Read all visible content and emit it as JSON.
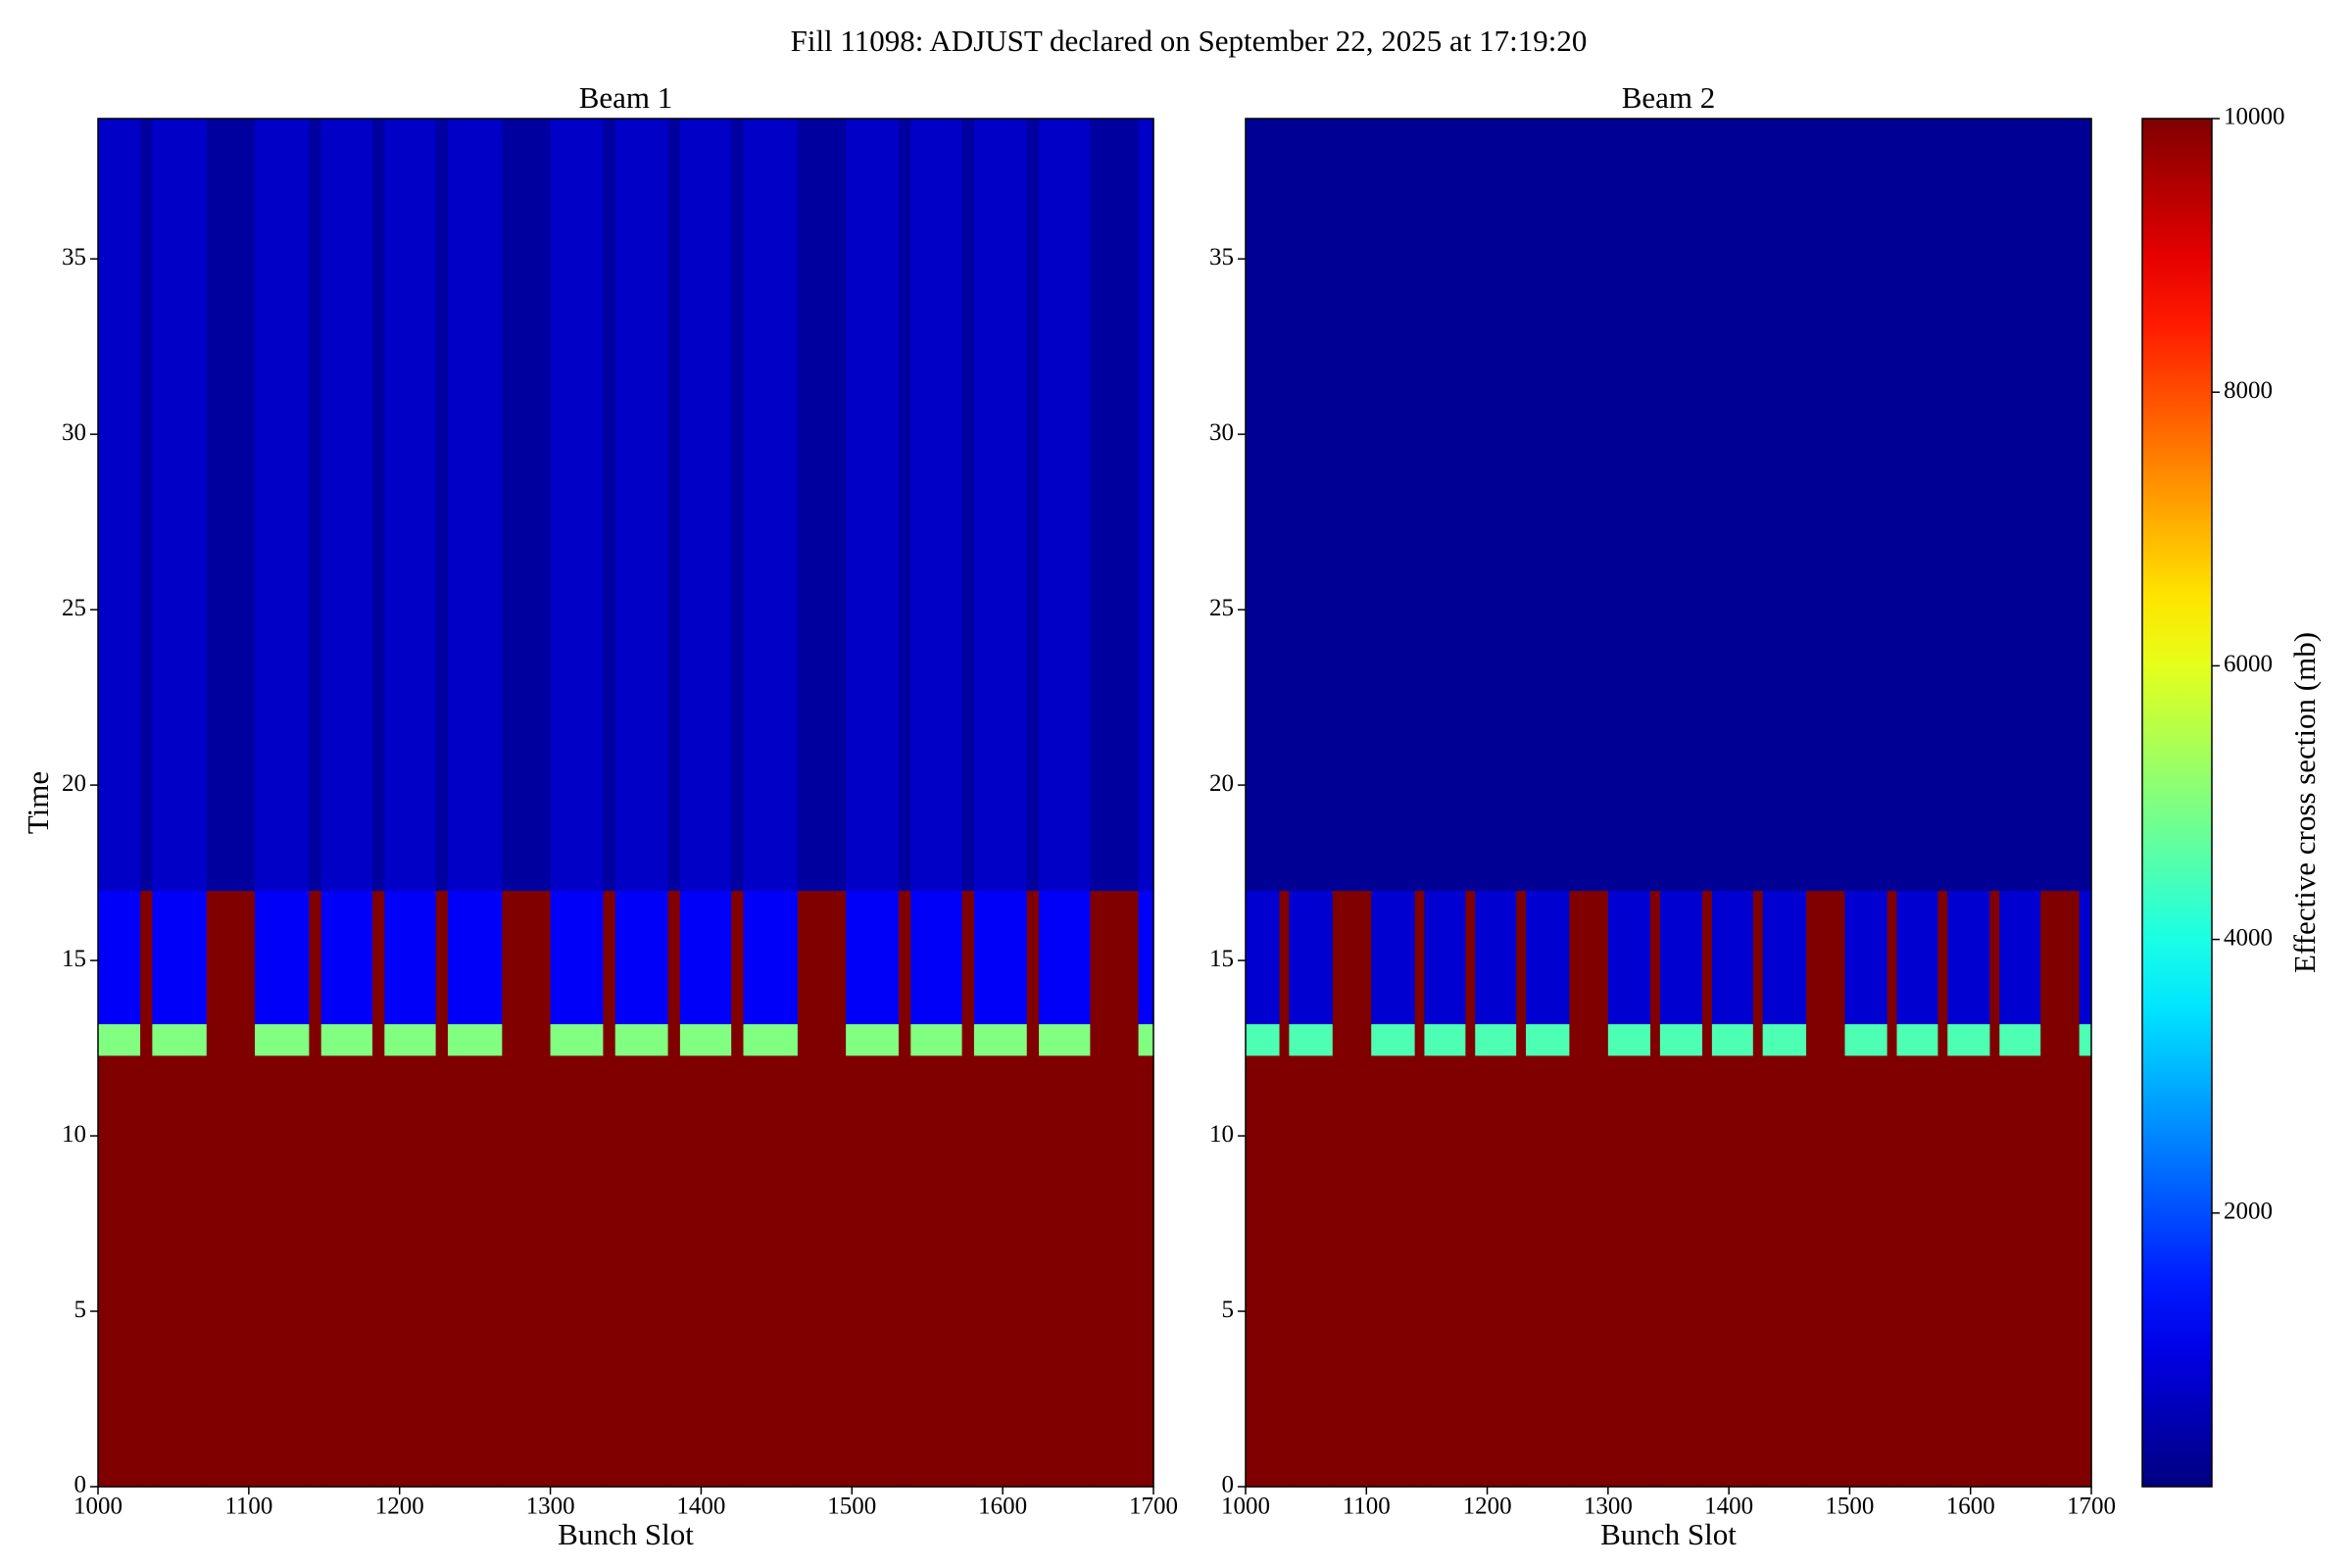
{
  "title": "Fill 11098: ADJUST declared on September 22, 2025 at 17:19:20",
  "colorbar": {
    "label": "Effective cross section (mb)",
    "colormap": "jet",
    "zlim": [
      0,
      10000
    ],
    "ticks": [
      2000,
      4000,
      6000,
      8000,
      10000
    ]
  },
  "chart_data": [
    {
      "type": "heatmap",
      "title": "Beam 1",
      "x_label": "Bunch Slot",
      "y_label": "Time",
      "xlim": [
        1000,
        1700
      ],
      "xticks": [
        1000,
        1100,
        1200,
        1300,
        1400,
        1500,
        1600,
        1700
      ],
      "ylim": [
        0,
        39
      ],
      "yticks": [
        0,
        5,
        10,
        15,
        20,
        25,
        30,
        35
      ],
      "x_edges": [
        1000,
        1028,
        1036,
        1072,
        1104,
        1140,
        1148,
        1182,
        1190,
        1224,
        1232,
        1268,
        1300,
        1335,
        1343,
        1378,
        1386,
        1420,
        1428,
        1464,
        1496,
        1531,
        1539,
        1573,
        1581,
        1616,
        1624,
        1658,
        1690,
        1700
      ],
      "y_edges": [
        0,
        12.3,
        13.2,
        17,
        39
      ],
      "values": [
        [
          10000,
          10000,
          10000,
          10000,
          10000,
          10000,
          10000,
          10000,
          10000,
          10000,
          10000,
          10000,
          10000,
          10000,
          10000,
          10000,
          10000,
          10000,
          10000,
          10000,
          10000,
          10000,
          10000,
          10000,
          10000,
          10000,
          10000,
          10000,
          10000
        ],
        [
          5000,
          10000,
          5000,
          10000,
          5000,
          10000,
          5000,
          10000,
          5000,
          10000,
          5000,
          10000,
          5000,
          10000,
          5000,
          10000,
          5000,
          10000,
          5000,
          10000,
          5000,
          10000,
          5000,
          10000,
          5000,
          10000,
          5000,
          10000,
          5000
        ],
        [
          1200,
          10000,
          1200,
          10000,
          1200,
          10000,
          1200,
          10000,
          1200,
          10000,
          1200,
          10000,
          1200,
          10000,
          1200,
          10000,
          1200,
          10000,
          1200,
          10000,
          1200,
          10000,
          1200,
          10000,
          1200,
          10000,
          1200,
          10000,
          1200
        ],
        [
          700,
          300,
          700,
          300,
          700,
          300,
          700,
          300,
          700,
          300,
          700,
          300,
          700,
          300,
          700,
          300,
          700,
          300,
          700,
          300,
          700,
          300,
          700,
          300,
          700,
          300,
          700,
          300,
          700
        ]
      ]
    },
    {
      "type": "heatmap",
      "title": "Beam 2",
      "x_label": "Bunch Slot",
      "xlim": [
        1000,
        1700
      ],
      "xticks": [
        1000,
        1100,
        1200,
        1300,
        1400,
        1500,
        1600,
        1700
      ],
      "ylim": [
        0,
        39
      ],
      "yticks": [
        0,
        5,
        10,
        15,
        20,
        25,
        30,
        35
      ],
      "x_edges": [
        1000,
        1028,
        1036,
        1072,
        1104,
        1140,
        1148,
        1182,
        1190,
        1224,
        1232,
        1268,
        1300,
        1335,
        1343,
        1378,
        1386,
        1420,
        1428,
        1464,
        1496,
        1531,
        1539,
        1573,
        1581,
        1616,
        1624,
        1658,
        1690,
        1700
      ],
      "y_edges": [
        0,
        12.3,
        13.2,
        17,
        39
      ],
      "values": [
        [
          10000,
          10000,
          10000,
          10000,
          10000,
          10000,
          10000,
          10000,
          10000,
          10000,
          10000,
          10000,
          10000,
          10000,
          10000,
          10000,
          10000,
          10000,
          10000,
          10000,
          10000,
          10000,
          10000,
          10000,
          10000,
          10000,
          10000,
          10000,
          10000
        ],
        [
          4500,
          10000,
          4500,
          10000,
          4500,
          10000,
          4500,
          10000,
          4500,
          10000,
          4500,
          10000,
          4500,
          10000,
          4500,
          10000,
          4500,
          10000,
          4500,
          10000,
          4500,
          10000,
          4500,
          10000,
          4500,
          10000,
          4500,
          10000,
          4500
        ],
        [
          800,
          10000,
          800,
          10000,
          800,
          10000,
          800,
          10000,
          800,
          10000,
          800,
          10000,
          800,
          10000,
          800,
          10000,
          800,
          10000,
          800,
          10000,
          800,
          10000,
          800,
          10000,
          800,
          10000,
          800,
          10000,
          800
        ],
        [
          200,
          200,
          200,
          200,
          200,
          200,
          200,
          200,
          200,
          200,
          200,
          200,
          200,
          200,
          200,
          200,
          200,
          200,
          200,
          200,
          200,
          200,
          200,
          200,
          200,
          200,
          200,
          200,
          200
        ]
      ]
    }
  ]
}
